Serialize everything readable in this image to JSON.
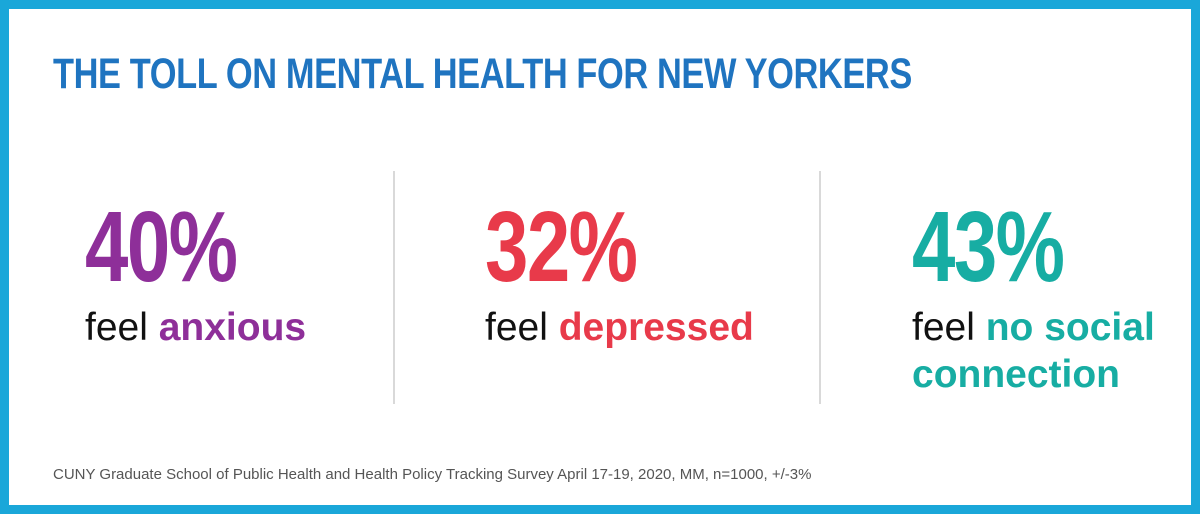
{
  "title": "THE TOLL ON MENTAL HEALTH FOR NEW YORKERS",
  "stats": [
    {
      "value": "40%",
      "prefix": "feel",
      "emphasis": "anxious",
      "color": "#8e2f99"
    },
    {
      "value": "32%",
      "prefix": "feel",
      "emphasis": "depressed",
      "color": "#e83a4a"
    },
    {
      "value": "43%",
      "prefix": "feel",
      "emphasis_line1": "no social",
      "emphasis_line2": "connection",
      "color": "#17ada3"
    }
  ],
  "colors": {
    "border": "#1aa7d9",
    "title": "#1f74c0",
    "divider": "#d9d9d9"
  },
  "source": "CUNY Graduate School of Public Health and Health Policy Tracking Survey April 17-19, 2020, MM, n=1000, +/-3%"
}
